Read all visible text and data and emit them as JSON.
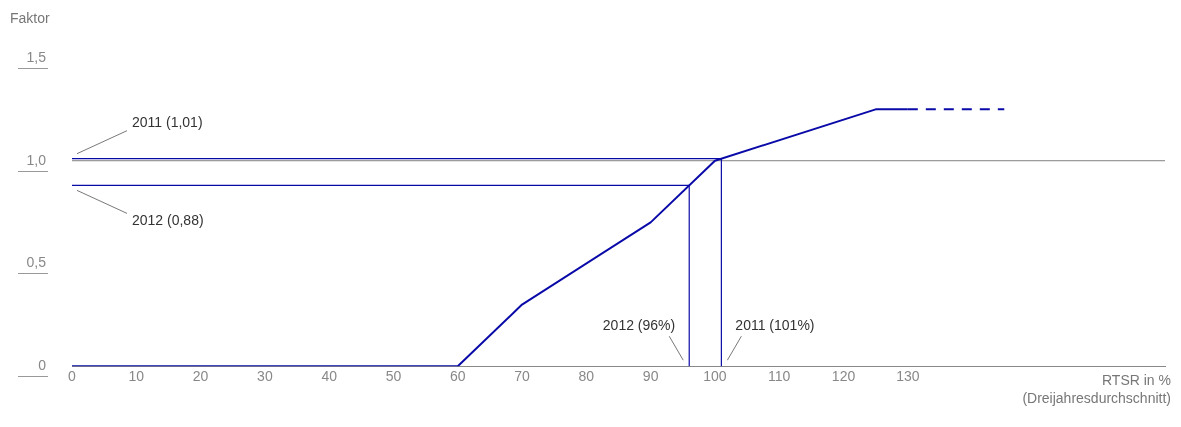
{
  "chart_data": {
    "type": "line",
    "xlabel": "RTSR in %\n(Dreijahresdurchschnitt)",
    "ylabel": "Faktor",
    "series": [
      {
        "color": "#0a0aa8",
        "x": [
          0,
          60,
          70,
          90,
          100,
          125,
          130
        ],
        "values": [
          0,
          0,
          0.3,
          0.7,
          1.0,
          1.25,
          1.25
        ]
      },
      {
        "color": "#0a0aa8",
        "x": [
          130,
          145
        ],
        "values": [
          1.25,
          1.25
        ],
        "line_style": "dashed"
      },
      {
        "color": "#0a0aa8",
        "x": [
          0,
          101,
          101
        ],
        "values": [
          1.01,
          1.01,
          0
        ]
      },
      {
        "color": "#0a0aa8",
        "x": [
          0,
          96,
          96
        ],
        "values": [
          0.88,
          0.88,
          0
        ]
      }
    ],
    "xlim": [
      0,
      170
    ],
    "xticks": [
      0,
      10,
      20,
      30,
      40,
      50,
      60,
      70,
      80,
      90,
      100,
      110,
      120,
      130
    ],
    "ylim": [
      0,
      1.5
    ],
    "yticks": [
      0,
      {
        "value": 0.5,
        "label": "0,5"
      },
      {
        "value": 1.0,
        "label": "1,0"
      },
      {
        "value": 1.5,
        "label": "1,5"
      }
    ],
    "ref_lines": [
      {
        "axis": "y",
        "value": 1.0,
        "color": "#808080"
      }
    ],
    "annotations": [
      {
        "text": "2011 (1,01)",
        "x": 0,
        "y": 1.01
      },
      {
        "text": "2012 (0,88)",
        "x": 0,
        "y": 0.88
      },
      {
        "text": "2012 (96%)",
        "x": 96,
        "y": 0
      },
      {
        "text": "2011 (101%)",
        "x": 101,
        "y": 0
      }
    ],
    "grid": false,
    "legend": false,
    "marker": "none"
  }
}
